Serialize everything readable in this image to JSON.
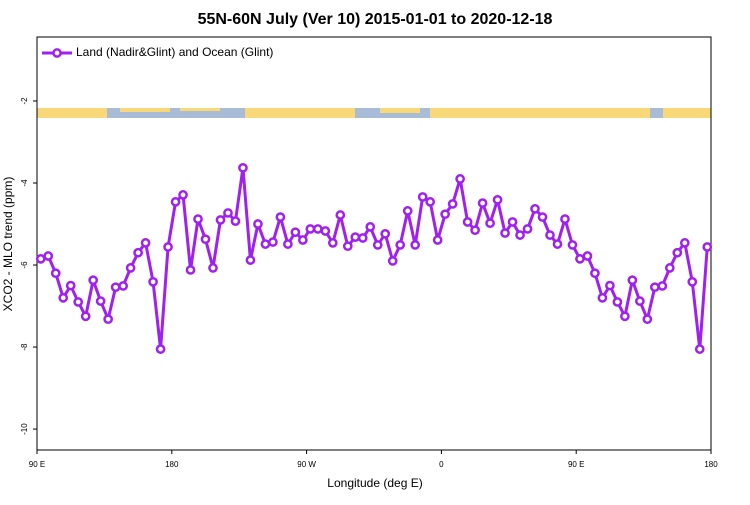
{
  "chart_data": {
    "type": "line",
    "title": "55N-60N July (Ver 10)   2015-01-01 to 2020-12-18",
    "x_label": "Longitude (deg E)",
    "y_label": "XCO2 - MLO trend (ppm)",
    "legend_position": "top-left",
    "xlim": [
      90,
      540
    ],
    "xticks": [
      {
        "value": 90,
        "label": "90 E"
      },
      {
        "value": 180,
        "label": "180"
      },
      {
        "value": 270,
        "label": "90 W"
      },
      {
        "value": 360,
        "label": "0"
      },
      {
        "value": 450,
        "label": "90 E"
      },
      {
        "value": 540,
        "label": "180"
      }
    ],
    "ylim": [
      -10.51,
      -0.44
    ],
    "yticks": [
      -2,
      -4,
      -6,
      -8,
      -10
    ],
    "x": [
      92.5,
      97.5,
      102.5,
      107.5,
      112.5,
      117.5,
      122.5,
      127.5,
      132.5,
      137.5,
      142.5,
      147.5,
      152.5,
      157.5,
      162.5,
      167.5,
      172.5,
      177.5,
      182.5,
      187.5,
      192.5,
      197.5,
      202.5,
      207.5,
      212.5,
      217.5,
      222.5,
      227.5,
      232.5,
      237.5,
      242.5,
      247.5,
      252.5,
      257.5,
      262.5,
      267.5,
      272.5,
      277.5,
      282.5,
      287.5,
      292.5,
      297.5,
      302.5,
      307.5,
      312.5,
      317.5,
      322.5,
      327.5,
      332.5,
      337.5,
      342.5,
      347.5,
      352.5,
      357.5,
      362.5,
      367.5,
      372.5,
      377.5,
      382.5,
      387.5,
      392.5,
      397.5,
      402.5,
      407.5,
      412.5,
      417.5,
      422.5,
      427.5,
      432.5,
      437.5,
      442.5,
      447.5,
      452.5,
      457.5,
      462.5,
      467.5,
      472.5,
      477.5,
      482.5,
      487.5,
      492.5,
      497.5,
      502.5,
      507.5,
      512.5,
      517.5,
      522.5,
      527.5,
      532.5,
      537.5
    ],
    "series": [
      {
        "name": "Land (Nadir&Glint) and Ocean (Glint)",
        "color": "#a020f0",
        "values": [
          -5.85,
          -5.78,
          -6.2,
          -6.8,
          -6.5,
          -6.9,
          -7.25,
          -6.37,
          -6.88,
          -7.32,
          -6.54,
          -6.51,
          -6.07,
          -5.7,
          -5.46,
          -6.41,
          -8.05,
          -5.56,
          -4.46,
          -4.29,
          -6.12,
          -4.88,
          -5.37,
          -6.07,
          -4.9,
          -4.73,
          -4.93,
          -3.63,
          -5.88,
          -5.0,
          -5.49,
          -5.44,
          -4.83,
          -5.49,
          -5.2,
          -5.39,
          -5.12,
          -5.12,
          -5.17,
          -5.46,
          -4.78,
          -5.54,
          -5.32,
          -5.34,
          -5.07,
          -5.51,
          -5.24,
          -5.9,
          -5.51,
          -4.68,
          -5.51,
          -4.34,
          -4.46,
          -5.39,
          -4.76,
          -4.51,
          -3.9,
          -4.95,
          -5.15,
          -4.49,
          -4.98,
          -4.41,
          -5.22,
          -4.95,
          -5.27,
          -5.12,
          -4.63,
          -4.83,
          -5.27,
          -5.49,
          -4.88,
          -5.51,
          -5.85,
          -5.78,
          -6.2,
          -6.8,
          -6.5,
          -6.9,
          -7.25,
          -6.37,
          -6.88,
          -7.32,
          -6.54,
          -6.51,
          -6.07,
          -5.7,
          -5.46,
          -6.41,
          -8.05,
          -5.56
        ]
      }
    ]
  }
}
